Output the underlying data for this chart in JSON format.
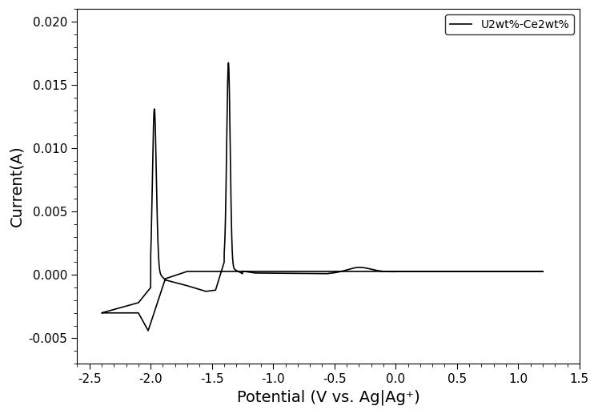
{
  "xlabel": "Potential (V vs. Ag|Ag⁺)",
  "ylabel": "Current(A)",
  "xlim": [
    -2.6,
    1.5
  ],
  "ylim": [
    -0.007,
    0.021
  ],
  "xticks": [
    -2.5,
    -2.0,
    -1.5,
    -1.0,
    -0.5,
    0.0,
    0.5,
    1.0,
    1.5
  ],
  "yticks": [
    -0.005,
    0.0,
    0.005,
    0.01,
    0.015,
    0.02
  ],
  "legend_label": "U2wt%-Ce2wt%",
  "line_color": "#000000",
  "line_width": 1.2,
  "background_color": "#ffffff",
  "xlabel_fontsize": 14,
  "ylabel_fontsize": 14,
  "tick_fontsize": 11
}
